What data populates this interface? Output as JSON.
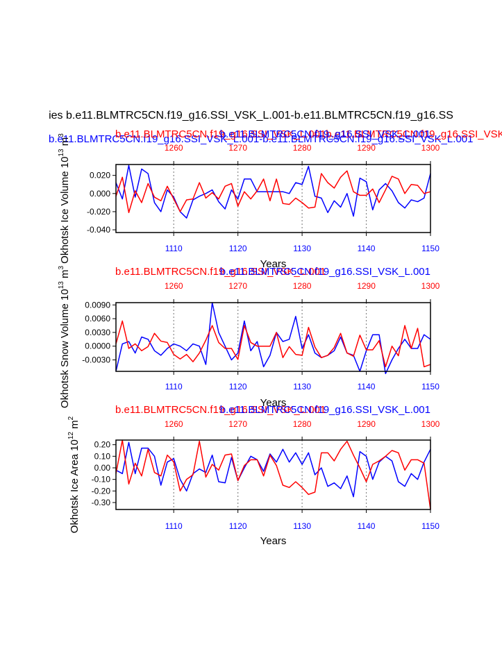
{
  "colors": {
    "blue": "#0000ff",
    "red": "#ff0000",
    "black": "#000000",
    "grid": "#888888"
  },
  "main_title": "ies b.e11.BLMTRC5CN.f19_g16.SSI_VSK_L.001-b.e11.BLMTRC5CN.f19_g16.SS",
  "chart_data": [
    {
      "type": "line",
      "ylabel": "Okhotsk Ice Volume 10",
      "ylabel_exp": "13",
      "ylabel_unit": " m",
      "ylabel_unit_exp": "3",
      "xlabel": "Years",
      "left_title": "b.e11.BLMTRC5CN.f19_g16.SSI_VSK_L.001-b.e11.BLMTRC5CN.f19_g16.SSI_VSK_L.001",
      "right_title": "b.e11.BLMTRC5CN.f19_g16.SSI_VSK_L.001",
      "red_title": "b.e11.BLMTRC5CN.f19_g16.SSI_VSK_L.001b.e11.BLMTRC5CN.f19_g16.SSI_VSK_L.001",
      "xlim_bottom": [
        1101,
        1150
      ],
      "xlim_top": [
        1251,
        1300
      ],
      "xticks_bottom": [
        "1110",
        "1120",
        "1130",
        "1140",
        "1150"
      ],
      "xticks_top": [
        "1260",
        "1270",
        "1280",
        "1290",
        "1300"
      ],
      "ylim": [
        -0.043,
        0.032
      ],
      "yticks": [
        0.02,
        0.0,
        -0.02,
        -0.04
      ],
      "ytick_labels": [
        "0.020",
        "0.000",
        "-0.020",
        "-0.040"
      ],
      "series": [
        {
          "name": "blue",
          "color": "blue",
          "values": [
            0.012,
            -0.006,
            0.031,
            -0.004,
            0.027,
            0.022,
            -0.01,
            -0.02,
            0.004,
            -0.004,
            -0.02,
            -0.027,
            -0.007,
            -0.003,
            0.0,
            0.004,
            -0.009,
            -0.017,
            0.004,
            -0.006,
            0.016,
            0.016,
            0.002,
            0.002,
            0.002,
            0.002,
            0.002,
            0.0,
            0.012,
            0.01,
            0.03,
            -0.003,
            -0.005,
            -0.021,
            -0.008,
            -0.015,
            0.0,
            -0.025,
            0.017,
            0.013,
            -0.018,
            0.004,
            0.011,
            0.003,
            -0.01,
            -0.016,
            -0.007,
            -0.009,
            -0.005,
            0.022
          ]
        },
        {
          "name": "red",
          "color": "red",
          "values": [
            -0.003,
            0.018,
            -0.021,
            0.003,
            -0.01,
            0.011,
            -0.004,
            -0.008,
            0.008,
            -0.006,
            -0.02,
            -0.007,
            -0.006,
            0.012,
            -0.005,
            0.001,
            -0.006,
            0.008,
            0.011,
            -0.014,
            0.002,
            -0.006,
            0.003,
            0.016,
            -0.008,
            0.016,
            -0.011,
            -0.012,
            -0.005,
            -0.01,
            -0.016,
            -0.015,
            0.022,
            0.012,
            0.006,
            0.018,
            0.025,
            0.002,
            -0.002,
            -0.002,
            0.005,
            -0.01,
            0.004,
            0.019,
            0.016,
            0.0,
            0.01,
            0.009,
            0.0,
            0.002
          ]
        }
      ]
    },
    {
      "type": "line",
      "ylabel": "Okhotsk Snow Volume 10",
      "ylabel_exp": "13",
      "ylabel_unit": " m",
      "ylabel_unit_exp": "3",
      "xlabel": "Years",
      "left_title": "b.e11.BLMTRC5CN.f19_g16.SSI_VSK_L.001",
      "right_title": "b.e11.BLMTRC5CN.f19_g16.SSI_VSK_L.001",
      "red_title": "b.e11.BLMTRC5CN.f19_g16.SSI_VSK_L.001",
      "xlim_bottom": [
        1101,
        1150
      ],
      "xlim_top": [
        1251,
        1300
      ],
      "xticks_bottom": [
        "1110",
        "1120",
        "1130",
        "1140",
        "1150"
      ],
      "xticks_top": [
        "1260",
        "1270",
        "1280",
        "1290",
        "1300"
      ],
      "ylim": [
        -0.0055,
        0.0095
      ],
      "yticks": [
        0.009,
        0.006,
        0.003,
        0.0,
        -0.003
      ],
      "ytick_labels": [
        "0.0090",
        "0.0060",
        "0.0030",
        "0.0000",
        "-0.0030"
      ],
      "series": [
        {
          "name": "blue",
          "color": "blue",
          "values": [
            -0.0055,
            0.0005,
            0.001,
            -0.0015,
            0.002,
            0.0015,
            -0.001,
            -0.002,
            -0.0005,
            0.0005,
            0.0,
            -0.001,
            0.0005,
            0.0,
            -0.004,
            0.0095,
            0.003,
            0.0,
            -0.003,
            -0.0015,
            0.0055,
            -0.001,
            0.001,
            -0.0045,
            -0.002,
            0.003,
            0.001,
            0.0015,
            0.0065,
            -0.0005,
            0.0025,
            -0.0015,
            -0.0025,
            -0.002,
            -0.001,
            0.002,
            -0.0015,
            -0.002,
            -0.0055,
            -0.001,
            0.0025,
            0.0025,
            -0.006,
            -0.003,
            -0.0005,
            0.0015,
            -0.0005,
            -0.0005,
            0.0025,
            0.0015
          ]
        },
        {
          "name": "red",
          "color": "red",
          "values": [
            0.0005,
            0.0055,
            -0.0005,
            0.0005,
            -0.001,
            -0.0001,
            0.0028,
            0.0011,
            0.0008,
            -0.0018,
            -0.0028,
            -0.0018,
            -0.0034,
            -0.0015,
            0.0013,
            0.0045,
            0.0008,
            -0.0005,
            -0.0005,
            -0.0029,
            0.0045,
            0.0008,
            0.0,
            0.0,
            0.0,
            0.003,
            -0.0025,
            -0.0001,
            -0.0018,
            -0.002,
            0.0041,
            -0.0002,
            -0.0025,
            -0.002,
            -0.0003,
            0.0028,
            -0.0015,
            -0.0022,
            0.0024,
            -0.0008,
            -0.0008,
            0.0012,
            -0.0045,
            0.0,
            -0.0021,
            0.0045,
            -0.0005,
            0.0039,
            -0.0045,
            -0.004
          ]
        }
      ]
    },
    {
      "type": "line",
      "ylabel": "Okhotsk Ice Area 10",
      "ylabel_exp": "12",
      "ylabel_unit": " m",
      "ylabel_unit_exp": "2",
      "xlabel": "Years",
      "left_title": "b.e11.BLMTRC5CN.f19_g16.SSI_VSK_L.001",
      "right_title": "b.e11.BLMTRC5CN.f19_g16.SSI_VSK_L.001",
      "red_title": "b.e11.BLMTRC5CN.f19_g16.SSI_VSK_L.001",
      "xlim_bottom": [
        1101,
        1150
      ],
      "xlim_top": [
        1251,
        1300
      ],
      "xticks_bottom": [
        "1110",
        "1120",
        "1130",
        "1140",
        "1150"
      ],
      "xticks_top": [
        "1260",
        "1270",
        "1280",
        "1290",
        "1300"
      ],
      "ylim": [
        -0.36,
        0.24
      ],
      "yticks": [
        0.2,
        0.1,
        0.0,
        -0.1,
        -0.2,
        -0.3
      ],
      "ytick_labels": [
        "0.20",
        "0.10",
        "0.00",
        "-0.10",
        "-0.20",
        "-0.30"
      ],
      "series": [
        {
          "name": "blue",
          "color": "blue",
          "values": [
            -0.02,
            -0.05,
            0.22,
            -0.05,
            0.17,
            0.17,
            0.1,
            -0.15,
            0.05,
            0.08,
            -0.1,
            -0.2,
            -0.05,
            -0.01,
            -0.04,
            0.11,
            -0.12,
            -0.13,
            0.09,
            -0.11,
            0.0,
            0.1,
            0.07,
            -0.03,
            0.12,
            0.05,
            0.16,
            0.05,
            0.13,
            0.03,
            0.13,
            -0.06,
            0.0,
            -0.16,
            -0.13,
            -0.18,
            -0.07,
            -0.25,
            0.14,
            0.1,
            -0.1,
            0.05,
            0.1,
            0.06,
            -0.12,
            -0.16,
            -0.05,
            -0.1,
            0.05,
            0.16
          ]
        },
        {
          "name": "red",
          "color": "red",
          "values": [
            -0.05,
            0.24,
            -0.14,
            0.04,
            -0.07,
            0.16,
            -0.04,
            -0.07,
            0.11,
            0.05,
            -0.2,
            -0.1,
            -0.06,
            0.23,
            -0.08,
            0.03,
            -0.02,
            0.11,
            0.12,
            -0.11,
            0.02,
            0.07,
            0.07,
            -0.07,
            0.11,
            0.02,
            -0.15,
            -0.17,
            -0.12,
            -0.17,
            -0.23,
            -0.21,
            0.13,
            0.13,
            0.06,
            0.16,
            0.23,
            0.11,
            0.0,
            -0.12,
            0.03,
            0.06,
            0.1,
            0.15,
            0.13,
            -0.02,
            0.07,
            0.07,
            0.04,
            -0.36
          ]
        }
      ]
    }
  ]
}
